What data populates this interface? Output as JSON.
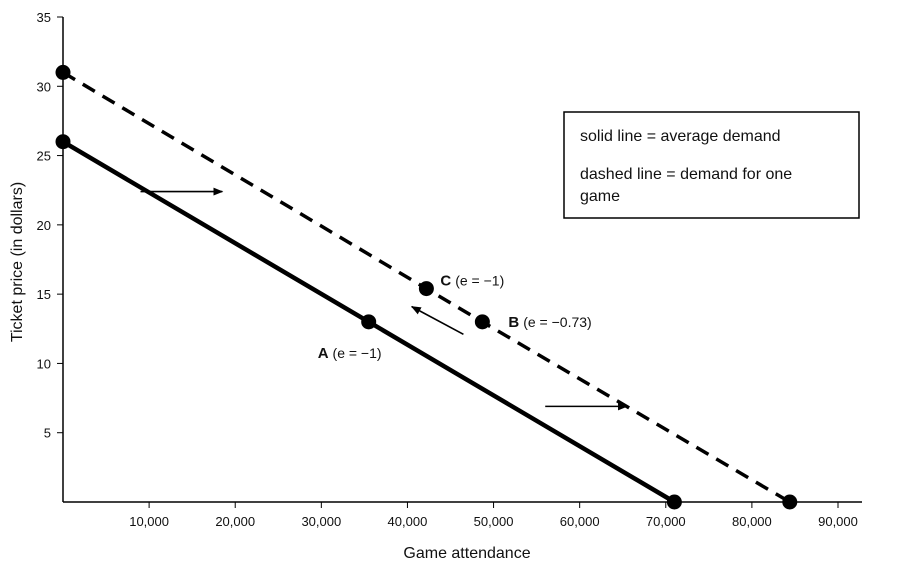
{
  "chart_data": {
    "type": "line",
    "xlabel": "Game attendance",
    "ylabel": "Ticket price (in dollars)",
    "xlim": [
      0,
      90000
    ],
    "ylim": [
      0,
      35
    ],
    "x_ticks": [
      10000,
      20000,
      30000,
      40000,
      50000,
      60000,
      70000,
      80000,
      90000
    ],
    "x_tick_labels": [
      "10,000",
      "20,000",
      "30,000",
      "40,000",
      "50,000",
      "60,000",
      "70,000",
      "80,000",
      "90,000"
    ],
    "y_ticks": [
      5,
      10,
      15,
      20,
      25,
      30,
      35
    ],
    "y_tick_labels": [
      "5",
      "10",
      "15",
      "20",
      "25",
      "30",
      "35"
    ],
    "grid": false,
    "series": [
      {
        "style": "solid",
        "x": [
          0,
          35500,
          71000
        ],
        "y": [
          26,
          13,
          0
        ]
      },
      {
        "style": "dashed",
        "x": [
          0,
          42200,
          48700,
          84400
        ],
        "y": [
          31,
          15.4,
          13,
          0
        ]
      }
    ],
    "points": [
      {
        "letter": "A",
        "text": "(e = −1)",
        "x": 35500,
        "y": 13
      },
      {
        "letter": "C",
        "text": "(e = −1)",
        "x": 42200,
        "y": 15.4
      },
      {
        "letter": "B",
        "text": "(e = −0.73)",
        "x": 48700,
        "y": 13
      }
    ],
    "arrows": [
      {
        "direction": "right",
        "x1": 9000,
        "y1": 22.4,
        "x2": 18500,
        "y2": 22.4
      },
      {
        "direction": "up-left",
        "x1": 46500,
        "y1": 12.1,
        "x2": 40500,
        "y2": 14.1
      },
      {
        "direction": "right",
        "x1": 56000,
        "y1": 6.9,
        "x2": 65500,
        "y2": 6.9
      }
    ],
    "legend": {
      "position": "top-right",
      "lines": [
        "solid line = average demand",
        "dashed line = demand for one",
        "game"
      ]
    }
  }
}
